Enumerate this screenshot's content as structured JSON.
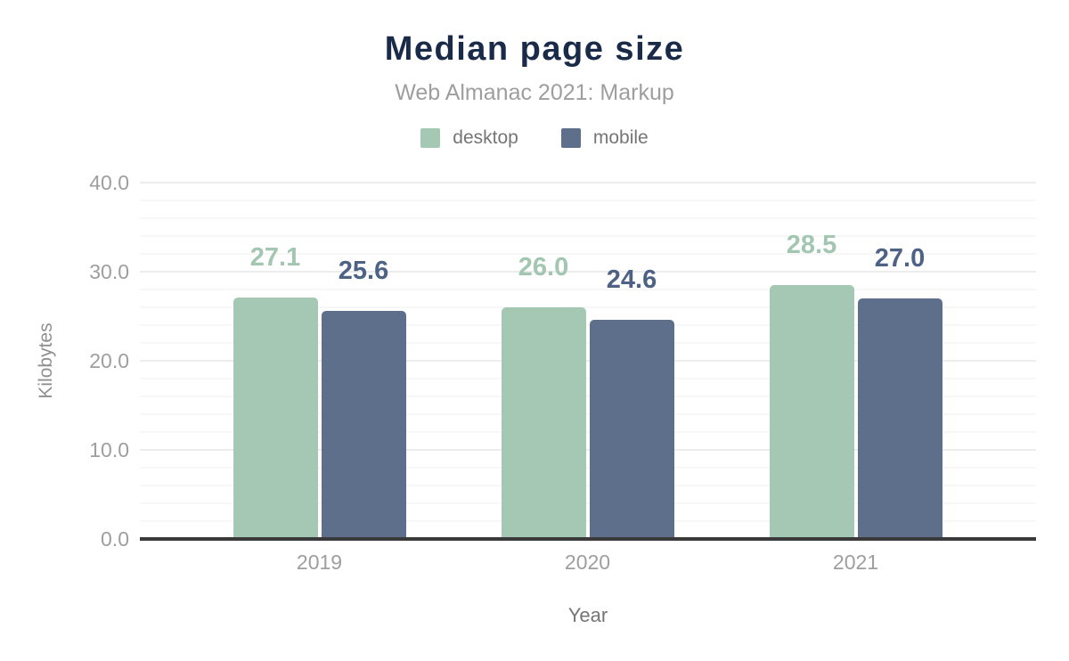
{
  "header": {
    "title": "Median page size",
    "subtitle": "Web Almanac 2021: Markup"
  },
  "chart_data": {
    "type": "bar",
    "title": "Median page size",
    "subtitle": "Web Almanac 2021: Markup",
    "categories": [
      "2019",
      "2020",
      "2021"
    ],
    "series": [
      {
        "name": "desktop",
        "color": "#a5c8b5",
        "label_color": "#a2c6b2",
        "values": [
          27.1,
          26.0,
          28.5
        ],
        "value_labels": [
          "27.1",
          "26.0",
          "28.5"
        ]
      },
      {
        "name": "mobile",
        "color": "#5d6f8a",
        "label_color": "#4d6285",
        "values": [
          25.6,
          24.6,
          27.0
        ],
        "value_labels": [
          "25.6",
          "24.6",
          "27.0"
        ]
      }
    ],
    "xlabel": "Year",
    "ylabel": "Kilobytes",
    "ylim": [
      0,
      40
    ],
    "y_major_step": 10,
    "y_minor_step": 2,
    "y_tick_labels": [
      "0.0",
      "10.0",
      "20.0",
      "30.0",
      "40.0"
    ],
    "grid": true,
    "legend_position": "top"
  },
  "colors": {
    "title": "#1a2b49",
    "subtitle": "#9e9e9e",
    "tick_text": "#9e9e9e",
    "axis_title_text": "#757575",
    "legend_text": "#757575",
    "axis_line": "#3a3a3a",
    "grid_major": "#ececec",
    "grid_minor": "#f7f7f7",
    "background": "#ffffff"
  }
}
